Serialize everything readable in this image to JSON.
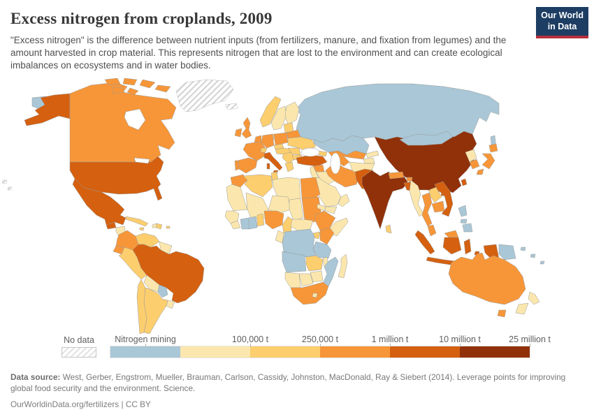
{
  "header": {
    "title": "Excess nitrogen from croplands, 2009",
    "subtitle": "\"Excess nitrogen\" is the difference between nutrient inputs (from fertilizers, manure, and fixation from legumes) and the amount harvested in crop material. This represents nitrogen that are lost to the environment and can create ecological imbalances on ecosystems and in water bodies.",
    "logo": {
      "line1": "Our World",
      "line2": "in Data",
      "bg_color": "#1d3d63",
      "accent_color": "#b5303c"
    }
  },
  "legend": {
    "no_data_label": "No data",
    "bins": [
      {
        "label": "Nitrogen mining",
        "color": "#a9c7d6",
        "label_anchor": "center"
      },
      {
        "label": "100,000 t",
        "color": "#fbe7ad",
        "label_anchor": "end"
      },
      {
        "label": "250,000 t",
        "color": "#fcce6e",
        "label_anchor": "end"
      },
      {
        "label": "1 million t",
        "color": "#f79638",
        "label_anchor": "end"
      },
      {
        "label": "10 million t",
        "color": "#d5600f",
        "label_anchor": "end"
      },
      {
        "label": "25 million t",
        "color": "#913109",
        "label_anchor": "end"
      }
    ]
  },
  "footer": {
    "source_bold": "Data source:",
    "source_text": " West, Gerber, Engstrom, Mueller, Brauman, Carlson, Cassidy, Johnston, MacDonald, Ray & Siebert (2014). Leverage points for improving global food security and the environment. Science.",
    "link_text": "OurWorldinData.org/fertilizers",
    "separator": "|",
    "license": "CC BY"
  },
  "map": {
    "palette": {
      "mining": "#a9c7d6",
      "c1": "#fbe7ad",
      "c2": "#fcce6e",
      "c3": "#f79638",
      "c4": "#d5600f",
      "c5": "#913109"
    },
    "regions": {
      "alaska": "c4",
      "canada": "c3",
      "arctic1": "c3",
      "arctic2": "c3",
      "arctic3": "c3",
      "arctic4": "c3",
      "arctic5": "c3",
      "arctic6": "c3",
      "chukotka": "mining",
      "greenland": "nodata",
      "iceland": "nodata",
      "usa": "c4",
      "mexico": "c4",
      "guatemala": "c4",
      "honduras_nicaragua": "c1",
      "costa_rica": "c2",
      "panama": "c3",
      "cuba": "c2",
      "haiti": "c1",
      "dominican_republic": "c2",
      "jamaica": "c2",
      "puerto_rico": "c2",
      "hawaii1": "nodata",
      "hawaii2": "nodata",
      "colombia": "c3",
      "venezuela": "c2",
      "guyanas": "c1",
      "ecuador": "c3",
      "peru": "c2",
      "brazil": "c4",
      "bolivia": "c1",
      "paraguay": "mining",
      "uruguay": "c1",
      "argentina": "c2",
      "chile": "c2",
      "norway": "c2",
      "sweden": "c1",
      "finland": "c1",
      "denmark": "c2",
      "uk": "c3",
      "ireland": "c3",
      "benelux": "c3",
      "germany": "c3",
      "poland": "c3",
      "france": "c3",
      "spain": "c3",
      "portugal": "c3",
      "switzerland": "c2",
      "czechia": "c2",
      "austria_hungary": "c2",
      "italy": "c4",
      "sicily": "c4",
      "sardinia": "c4",
      "balkans": "c2",
      "greece": "c2",
      "romania": "c2",
      "bulgaria": "c2",
      "baltics": "c2",
      "belarus": "c3",
      "ukraine": "c2",
      "caucasus": "c2",
      "turkey": "c4",
      "russia": "mining",
      "sakhalin": "mining",
      "kazakhstan": "mining",
      "mongolia": "mining",
      "uzbekistan": "c3",
      "turkmenistan": "c3",
      "kyrgyzstan": "c1",
      "tajikistan": "c1",
      "afghanistan": "c1",
      "syria": "c3",
      "levant": "c1",
      "iraq": "c1",
      "iran": "c3",
      "saudi_arabia": "c1",
      "yemen": "c1",
      "oman": "c1",
      "morocco": "c3",
      "mauritania": "c1",
      "algeria": "c2",
      "tunisia": "c2",
      "libya": "c1",
      "egypt": "c3",
      "mali": "c1",
      "niger": "c1",
      "chad": "c1",
      "sudan": "c3",
      "eritrea": "c1",
      "senegal_guinea": "c1",
      "sierra_leone_liberia": "c1",
      "ivory_coast": "mining",
      "ghana": "mining",
      "togo_benin": "c2",
      "nigeria": "c3",
      "cameroon": "c2",
      "central_african_republic": "c1",
      "gabon_congo": "c1",
      "dr_congo": "mining",
      "uganda": "c2",
      "kenya": "c3",
      "somalia": "c1",
      "ethiopia": "c3",
      "tanzania": "mining",
      "angola": "mining",
      "zambia": "c2",
      "malawi": "c1",
      "mozambique": "mining",
      "zimbabwe": "c1",
      "botswana": "c1",
      "namibia": "c1",
      "south_africa": "c3",
      "lesotho": "c1",
      "madagascar": "c1",
      "china": "c5",
      "taiwan": "c4",
      "hainan": "c4",
      "north_korea": "c1",
      "south_korea": "c3",
      "japan_hokkaido": "c3",
      "japan_honshu": "c3",
      "japan_kyushu": "c3",
      "india": "c5",
      "nepal": "c3",
      "bhutan": "c3",
      "bangladesh": "c4",
      "sri_lanka": "c2",
      "pakistan": "c4",
      "myanmar": "c1",
      "thailand": "c3",
      "laos": "c2",
      "cambodia": "c3",
      "vietnam": "c4",
      "malaysia_peninsula": "c3",
      "malaysia_borneo": "c3",
      "sumatra": "c4",
      "java": "c4",
      "kalimantan": "c4",
      "sulawesi": "c4",
      "lesser_sunda1": "c4",
      "lesser_sunda2": "c4",
      "moluccas": "c4",
      "west_papua": "c4",
      "papua_new_guinea": "mining",
      "philippines_luzon": "mining",
      "philippines_visayas": "mining",
      "philippines_mindanao": "mining",
      "pacific1": "mining",
      "pacific2": "mining",
      "pacific3": "mining",
      "australia": "c3",
      "tasmania": "c3",
      "nz_north": "c1",
      "nz_south": "c1"
    }
  }
}
